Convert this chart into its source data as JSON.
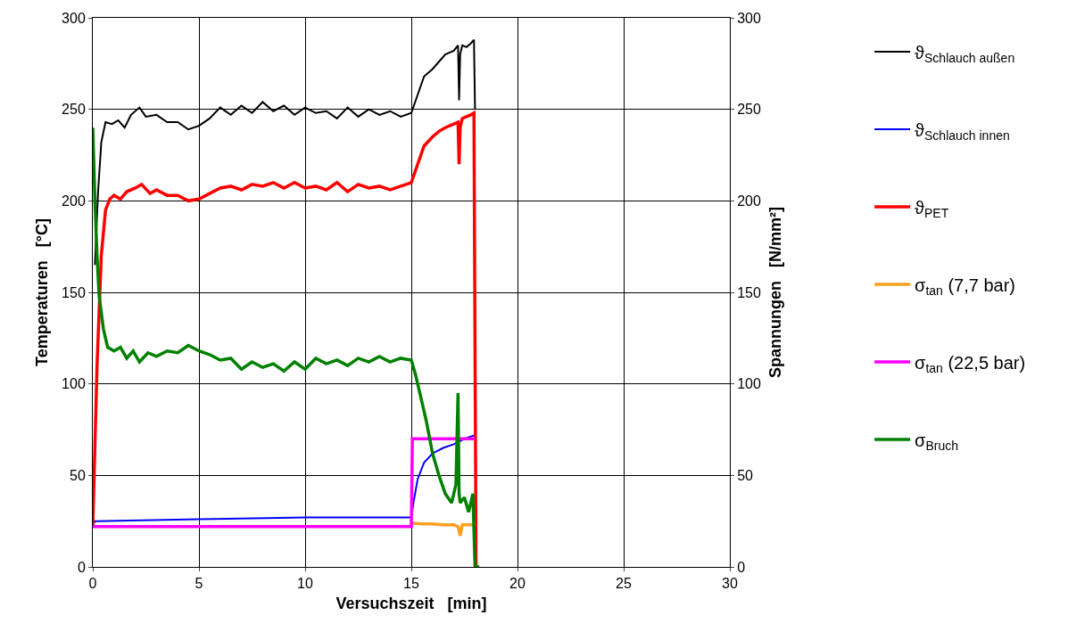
{
  "chart_data": {
    "type": "line",
    "xlabel": "Versuchszeit   [min]",
    "ylabel": "Temperaturen   [°C]",
    "y2label": "Spannungen   [N/mm²]",
    "xlim": [
      0,
      30
    ],
    "xticks": [
      0,
      5,
      10,
      15,
      20,
      25,
      30
    ],
    "ylim": [
      0,
      300
    ],
    "yticks": [
      0,
      50,
      100,
      150,
      200,
      250,
      300
    ],
    "y2lim": [
      0,
      300
    ],
    "y2ticks": [
      0,
      50,
      100,
      150,
      200,
      250,
      300
    ],
    "grid": true,
    "legend": "right",
    "line_style": "solid",
    "series": [
      {
        "name": "ϑ$_{Schlauch außen}$",
        "color": "#000000",
        "x": [
          0.1,
          0.25,
          0.4,
          0.6,
          0.9,
          1.2,
          1.5,
          1.8,
          2.2,
          2.5,
          3,
          3.5,
          4,
          4.5,
          5,
          5.5,
          6,
          6.5,
          7,
          7.5,
          8,
          8.5,
          9,
          9.5,
          10,
          10.5,
          11,
          11.5,
          12,
          12.5,
          13,
          13.5,
          14,
          14.5,
          15,
          15.3,
          15.6,
          16,
          16.3,
          16.6,
          17,
          17.2,
          17.25,
          17.3,
          17.4,
          17.6,
          17.8,
          17.95,
          18.0
        ],
        "values": [
          165,
          205,
          232,
          243,
          242,
          244,
          240,
          247,
          251,
          246,
          247,
          243,
          243,
          239,
          241,
          245,
          251,
          247,
          252,
          248,
          254,
          249,
          252,
          247,
          251,
          248,
          249,
          245,
          251,
          246,
          250,
          247,
          249,
          246,
          248,
          258,
          268,
          272,
          276,
          280,
          282,
          285,
          255,
          280,
          285,
          284,
          286,
          288,
          250
        ]
      },
      {
        "name": "ϑ$_{Schlauch innen}$",
        "color": "#0000ff",
        "x": [
          0,
          0.1,
          5,
          10,
          15,
          15.1,
          15.3,
          15.6,
          16,
          16.5,
          17,
          17.5,
          18
        ],
        "values": [
          23,
          25,
          26,
          27,
          27,
          35,
          48,
          57,
          62,
          65,
          67,
          70,
          72
        ]
      },
      {
        "name": "ϑ$_{PET}$",
        "color": "#ff0000",
        "x": [
          0,
          0.2,
          0.4,
          0.6,
          0.8,
          1,
          1.3,
          1.6,
          2,
          2.3,
          2.7,
          3,
          3.5,
          4,
          4.5,
          5,
          5.5,
          6,
          6.5,
          7,
          7.5,
          8,
          8.5,
          9,
          9.5,
          10,
          10.5,
          11,
          11.5,
          12,
          12.5,
          13,
          13.5,
          14,
          14.5,
          15,
          15.3,
          15.6,
          16,
          16.3,
          16.6,
          17,
          17.2,
          17.25,
          17.3,
          17.4,
          17.6,
          17.8,
          17.95,
          18.0,
          18.05
        ],
        "values": [
          22,
          110,
          170,
          195,
          201,
          203,
          201,
          205,
          207,
          209,
          204,
          206,
          203,
          203,
          200,
          201,
          204,
          207,
          208,
          206,
          209,
          208,
          210,
          207,
          210,
          207,
          208,
          206,
          210,
          205,
          209,
          207,
          208,
          206,
          208,
          210,
          220,
          230,
          235,
          238,
          240,
          242,
          243,
          220,
          240,
          245,
          246,
          247,
          248,
          120,
          0
        ]
      },
      {
        "name": "σ$_{tan}$ (7,7 bar)",
        "color": "#ffa020",
        "axis": "y2",
        "x": [
          15,
          15.5,
          16,
          16.5,
          17,
          17.2,
          17.3,
          17.4,
          17.6,
          18
        ],
        "values": [
          24,
          23.5,
          23.5,
          23,
          23,
          22,
          17,
          23,
          23,
          23
        ]
      },
      {
        "name": "σ$_{tan}$ (22,5 bar)",
        "color": "#ff00ff",
        "axis": "y2",
        "x": [
          0,
          5,
          10,
          14.95,
          15,
          15.05,
          18
        ],
        "values": [
          22,
          22,
          22,
          22,
          22,
          70,
          70
        ]
      },
      {
        "name": "σ$_{Bruch}$",
        "color": "#008000",
        "axis": "y2",
        "x": [
          0,
          0.1,
          0.2,
          0.3,
          0.5,
          0.7,
          1,
          1.3,
          1.6,
          1.9,
          2.2,
          2.6,
          3,
          3.5,
          4,
          4.5,
          5,
          5.5,
          6,
          6.5,
          7,
          7.5,
          8,
          8.5,
          9,
          9.5,
          10,
          10.5,
          11,
          11.5,
          12,
          12.5,
          13,
          13.5,
          14,
          14.5,
          15,
          15.2,
          15.4,
          15.7,
          16,
          16.3,
          16.6,
          16.9,
          17.1,
          17.2,
          17.25,
          17.3,
          17.5,
          17.7,
          17.9,
          18,
          18.2
        ],
        "values": [
          240,
          200,
          170,
          148,
          130,
          120,
          118,
          120,
          114,
          118,
          112,
          117,
          115,
          118,
          117,
          121,
          118,
          116,
          113,
          114,
          108,
          112,
          109,
          111,
          107,
          112,
          108,
          114,
          111,
          113,
          110,
          114,
          112,
          115,
          112,
          114,
          113,
          105,
          95,
          80,
          62,
          50,
          40,
          35,
          45,
          95,
          40,
          35,
          38,
          30,
          40,
          0,
          0
        ]
      }
    ]
  }
}
